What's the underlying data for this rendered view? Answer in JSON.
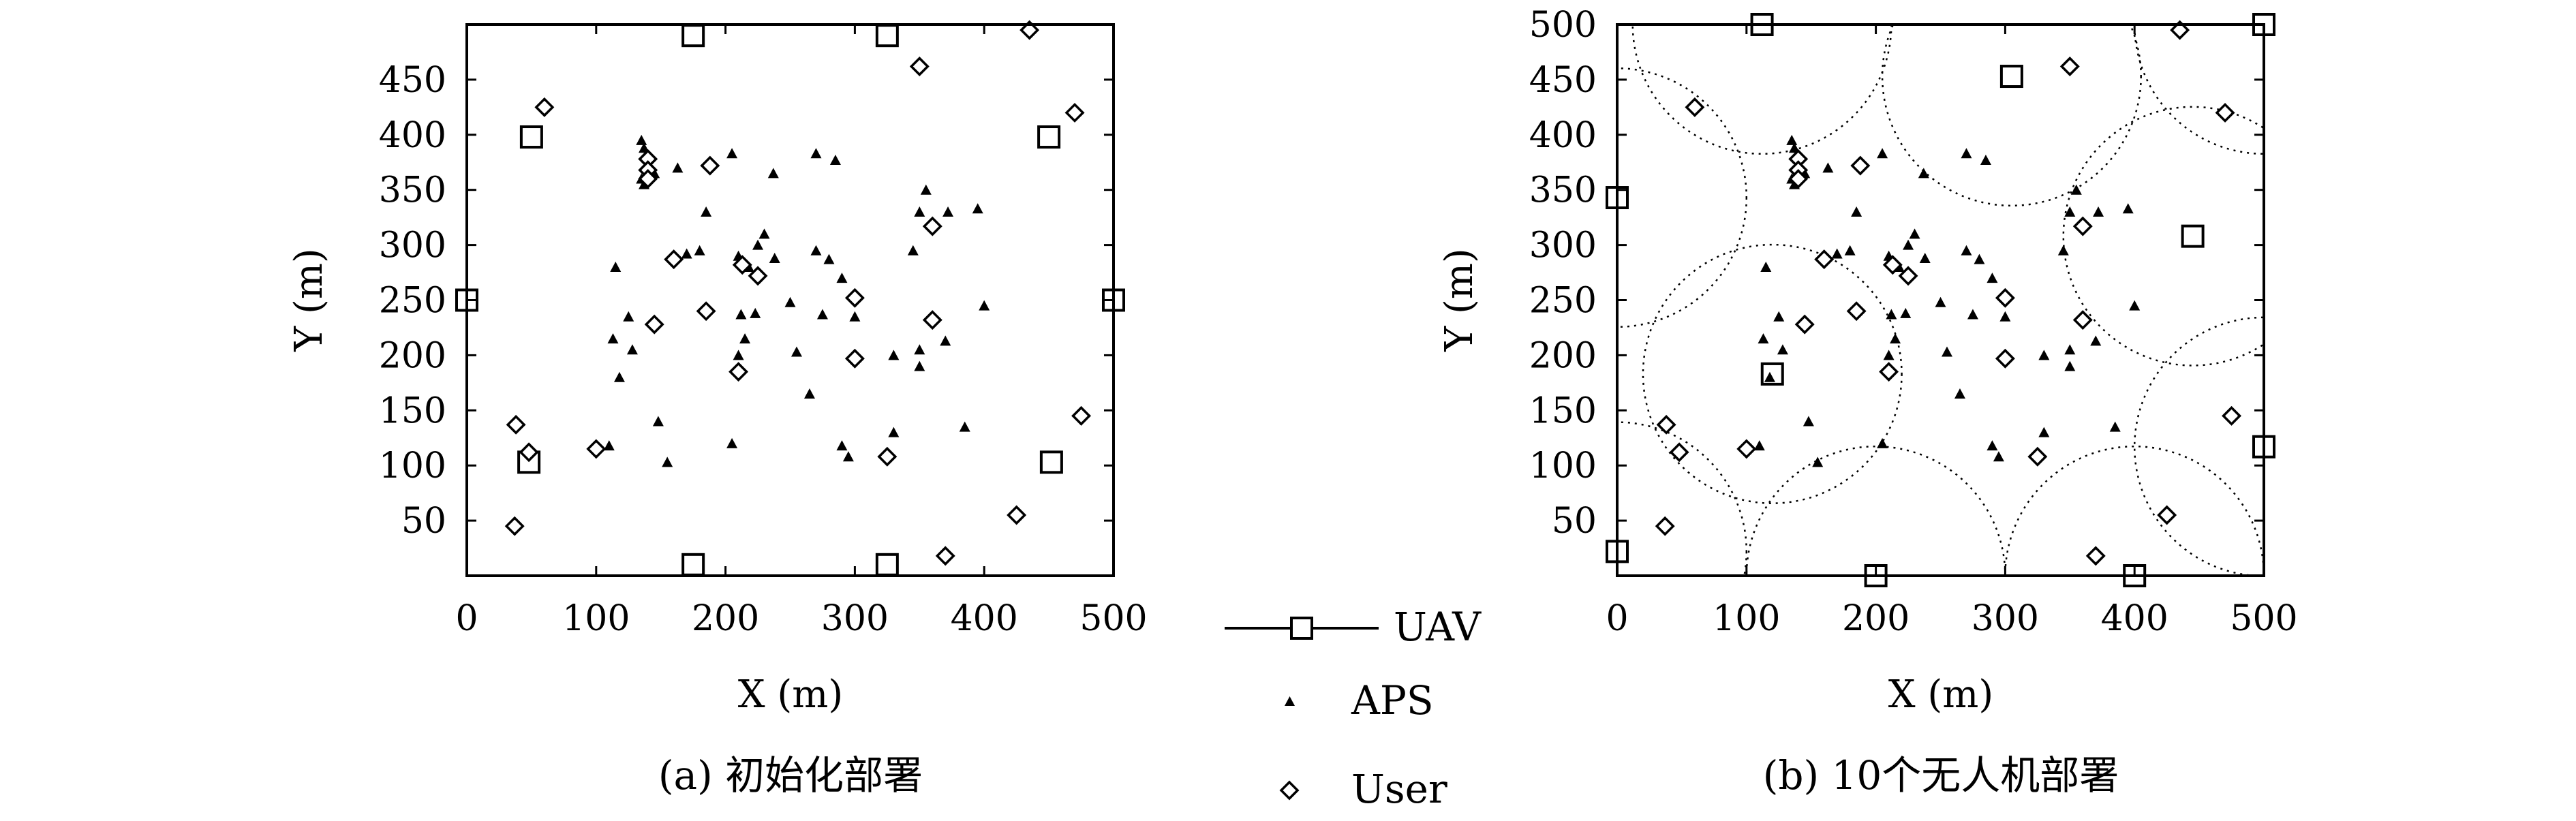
{
  "chart_data": [
    {
      "type": "scatter",
      "caption": "(a) 初始化部署",
      "xlabel": "X (m)",
      "ylabel": "Y (m)",
      "xlim": [
        0,
        500
      ],
      "ylim": [
        0,
        500
      ],
      "xticks": [
        0,
        100,
        200,
        300,
        400,
        500
      ],
      "yticks": [
        50,
        100,
        150,
        200,
        250,
        300,
        350,
        400,
        450
      ],
      "grid": false,
      "series": [
        {
          "name": "UAV",
          "marker": "square",
          "points": [
            [
              175,
              490
            ],
            [
              325,
              490
            ],
            [
              50,
              398
            ],
            [
              450,
              398
            ],
            [
              0,
              250
            ],
            [
              500,
              250
            ],
            [
              48,
              103
            ],
            [
              452,
              103
            ],
            [
              175,
              10
            ],
            [
              325,
              10
            ]
          ]
        },
        {
          "name": "APS",
          "marker": "triangle",
          "points": [
            [
              135,
              395
            ],
            [
              137,
              388
            ],
            [
              140,
              380
            ],
            [
              135,
              360
            ],
            [
              137,
              355
            ],
            [
              145,
              365
            ],
            [
              163,
              370
            ],
            [
              205,
              383
            ],
            [
              237,
              365
            ],
            [
              270,
              383
            ],
            [
              285,
              377
            ],
            [
              185,
              330
            ],
            [
              115,
              280
            ],
            [
              125,
              235
            ],
            [
              113,
              215
            ],
            [
              128,
              205
            ],
            [
              118,
              180
            ],
            [
              148,
              140
            ],
            [
              155,
              103
            ],
            [
              170,
              292
            ],
            [
              180,
              295
            ],
            [
              230,
              310
            ],
            [
              225,
              300
            ],
            [
              238,
              288
            ],
            [
              210,
              290
            ],
            [
              218,
              280
            ],
            [
              212,
              237
            ],
            [
              223,
              238
            ],
            [
              215,
              215
            ],
            [
              210,
              200
            ],
            [
              250,
              248
            ],
            [
              255,
              203
            ],
            [
              265,
              165
            ],
            [
              270,
              295
            ],
            [
              280,
              287
            ],
            [
              290,
              270
            ],
            [
              275,
              237
            ],
            [
              300,
              235
            ],
            [
              290,
              118
            ],
            [
              295,
              108
            ],
            [
              330,
              200
            ],
            [
              350,
              190
            ],
            [
              330,
              130
            ],
            [
              205,
              120
            ],
            [
              110,
              118
            ],
            [
              345,
              295
            ],
            [
              350,
              330
            ],
            [
              355,
              350
            ],
            [
              372,
              330
            ],
            [
              395,
              333
            ],
            [
              350,
              205
            ],
            [
              370,
              213
            ],
            [
              400,
              245
            ],
            [
              385,
              135
            ]
          ]
        },
        {
          "name": "User",
          "marker": "diamond",
          "points": [
            [
              60,
              425
            ],
            [
              140,
              378
            ],
            [
              140,
              368
            ],
            [
              140,
              360
            ],
            [
              188,
              372
            ],
            [
              185,
              240
            ],
            [
              160,
              287
            ],
            [
              213,
              282
            ],
            [
              225,
              272
            ],
            [
              300,
              252
            ],
            [
              145,
              228
            ],
            [
              210,
              185
            ],
            [
              300,
              197
            ],
            [
              360,
              232
            ],
            [
              360,
              317
            ],
            [
              350,
              462
            ],
            [
              435,
              495
            ],
            [
              470,
              420
            ],
            [
              475,
              145
            ],
            [
              100,
              115
            ],
            [
              48,
              112
            ],
            [
              38,
              137
            ],
            [
              37,
              45
            ],
            [
              325,
              108
            ],
            [
              370,
              18
            ],
            [
              425,
              55
            ]
          ]
        }
      ]
    },
    {
      "type": "scatter",
      "caption": "(b) 10个无人机部署",
      "xlabel": "X (m)",
      "ylabel": "Y (m)",
      "xlim": [
        0,
        500
      ],
      "ylim": [
        0,
        500
      ],
      "xticks": [
        0,
        100,
        200,
        300,
        400,
        500
      ],
      "yticks": [
        50,
        100,
        150,
        200,
        250,
        300,
        350,
        400,
        450,
        500
      ],
      "grid": false,
      "coverage_radius": 100,
      "series": [
        {
          "name": "UAV",
          "marker": "square",
          "points": [
            [
              112,
              500
            ],
            [
              500,
              500
            ],
            [
              305,
              453
            ],
            [
              0,
              343
            ],
            [
              445,
              308
            ],
            [
              120,
              183
            ],
            [
              500,
              117
            ],
            [
              0,
              22
            ],
            [
              200,
              0
            ],
            [
              400,
              0
            ]
          ]
        },
        {
          "name": "APS",
          "marker": "triangle",
          "points": [
            [
              135,
              395
            ],
            [
              137,
              388
            ],
            [
              140,
              380
            ],
            [
              135,
              360
            ],
            [
              137,
              355
            ],
            [
              145,
              365
            ],
            [
              163,
              370
            ],
            [
              205,
              383
            ],
            [
              237,
              365
            ],
            [
              270,
              383
            ],
            [
              285,
              377
            ],
            [
              185,
              330
            ],
            [
              115,
              280
            ],
            [
              125,
              235
            ],
            [
              113,
              215
            ],
            [
              128,
              205
            ],
            [
              118,
              180
            ],
            [
              148,
              140
            ],
            [
              155,
              103
            ],
            [
              170,
              292
            ],
            [
              180,
              295
            ],
            [
              230,
              310
            ],
            [
              225,
              300
            ],
            [
              238,
              288
            ],
            [
              210,
              290
            ],
            [
              218,
              280
            ],
            [
              212,
              237
            ],
            [
              223,
              238
            ],
            [
              215,
              215
            ],
            [
              210,
              200
            ],
            [
              250,
              248
            ],
            [
              255,
              203
            ],
            [
              265,
              165
            ],
            [
              270,
              295
            ],
            [
              280,
              287
            ],
            [
              290,
              270
            ],
            [
              275,
              237
            ],
            [
              300,
              235
            ],
            [
              290,
              118
            ],
            [
              295,
              108
            ],
            [
              330,
              200
            ],
            [
              350,
              190
            ],
            [
              330,
              130
            ],
            [
              205,
              120
            ],
            [
              110,
              118
            ],
            [
              345,
              295
            ],
            [
              350,
              330
            ],
            [
              355,
              350
            ],
            [
              372,
              330
            ],
            [
              395,
              333
            ],
            [
              350,
              205
            ],
            [
              370,
              213
            ],
            [
              400,
              245
            ],
            [
              385,
              135
            ]
          ]
        },
        {
          "name": "User",
          "marker": "diamond",
          "points": [
            [
              60,
              425
            ],
            [
              140,
              378
            ],
            [
              140,
              368
            ],
            [
              140,
              360
            ],
            [
              188,
              372
            ],
            [
              185,
              240
            ],
            [
              160,
              287
            ],
            [
              213,
              282
            ],
            [
              225,
              272
            ],
            [
              300,
              252
            ],
            [
              145,
              228
            ],
            [
              210,
              185
            ],
            [
              300,
              197
            ],
            [
              360,
              232
            ],
            [
              360,
              317
            ],
            [
              350,
              462
            ],
            [
              435,
              495
            ],
            [
              470,
              420
            ],
            [
              475,
              145
            ],
            [
              100,
              115
            ],
            [
              48,
              112
            ],
            [
              38,
              137
            ],
            [
              37,
              45
            ],
            [
              325,
              108
            ],
            [
              370,
              18
            ],
            [
              425,
              55
            ]
          ]
        }
      ]
    }
  ],
  "legend": {
    "items": [
      {
        "label": "UAV",
        "marker": "square"
      },
      {
        "label": "APS",
        "marker": "triangle"
      },
      {
        "label": "User",
        "marker": "diamond"
      }
    ]
  }
}
